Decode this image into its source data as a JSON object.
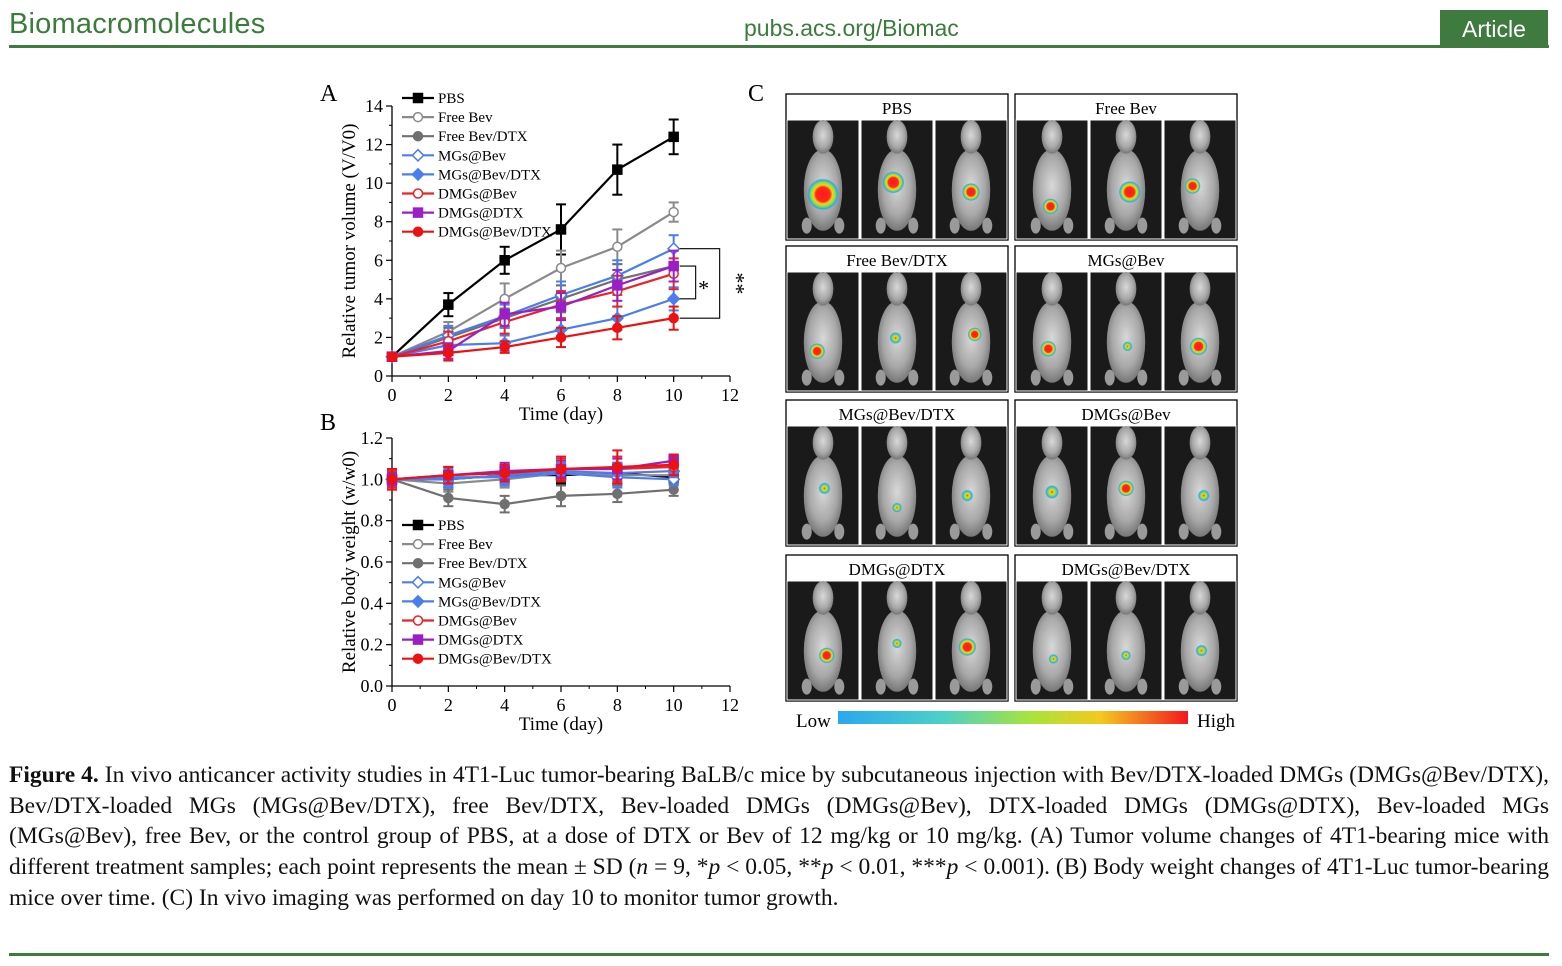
{
  "header": {
    "journal": "Biomacromolecules",
    "url": "pubs.acs.org/Biomac",
    "badge": "Article"
  },
  "figure": {
    "panel_a_label": "A",
    "panel_b_label": "B",
    "panel_c_label": "C"
  },
  "chart_data": [
    {
      "type": "line",
      "panel": "A",
      "xlabel": "Time (day)",
      "ylabel": "Relative tumor volume (V/V0)",
      "xlim": [
        0,
        12
      ],
      "ylim": [
        0,
        14
      ],
      "xticks": [
        0,
        2,
        4,
        6,
        8,
        10,
        12
      ],
      "yticks": [
        0,
        2,
        4,
        6,
        8,
        10,
        12,
        14
      ],
      "x": [
        0,
        2,
        4,
        6,
        8,
        10
      ],
      "legend_position": "top-left",
      "significance": [
        "*",
        "**"
      ],
      "series": [
        {
          "name": "PBS",
          "color": "#000000",
          "marker": "square-filled",
          "values": [
            1.0,
            3.7,
            6.0,
            7.6,
            10.7,
            12.4
          ],
          "errors": [
            0.2,
            0.6,
            0.7,
            1.3,
            1.3,
            0.9
          ]
        },
        {
          "name": "Free Bev",
          "color": "#8a8a8a",
          "marker": "circle-open",
          "values": [
            1.0,
            2.3,
            4.0,
            5.6,
            6.7,
            8.5
          ],
          "errors": [
            0.2,
            0.5,
            0.8,
            0.9,
            0.9,
            0.5
          ]
        },
        {
          "name": "Free Bev/DTX",
          "color": "#707070",
          "marker": "circle-filled",
          "values": [
            1.0,
            2.0,
            3.0,
            4.0,
            5.0,
            5.7
          ],
          "errors": [
            0.2,
            0.5,
            0.5,
            0.7,
            0.8,
            0.8
          ]
        },
        {
          "name": "MGs@Bev",
          "color": "#4a7df0",
          "marker": "diamond-open",
          "values": [
            1.0,
            2.1,
            3.1,
            4.2,
            5.2,
            6.6
          ],
          "errors": [
            0.2,
            0.5,
            0.6,
            0.7,
            0.8,
            0.7
          ]
        },
        {
          "name": "MGs@Bev/DTX",
          "color": "#4a7df0",
          "marker": "diamond-filled",
          "values": [
            1.0,
            1.6,
            1.7,
            2.4,
            3.0,
            4.0
          ],
          "errors": [
            0.2,
            0.4,
            0.4,
            0.5,
            0.6,
            0.6
          ]
        },
        {
          "name": "DMGs@Bev",
          "color": "#e8232a",
          "marker": "circle-open",
          "values": [
            1.0,
            1.8,
            2.8,
            3.7,
            4.4,
            5.3
          ],
          "errors": [
            0.2,
            0.5,
            0.6,
            0.7,
            0.8,
            0.8
          ]
        },
        {
          "name": "DMGs@DTX",
          "color": "#9a1fc4",
          "marker": "square-filled",
          "values": [
            1.0,
            1.3,
            3.2,
            3.6,
            4.7,
            5.7
          ],
          "errors": [
            0.2,
            0.4,
            0.6,
            0.7,
            0.8,
            0.8
          ]
        },
        {
          "name": "DMGs@Bev/DTX",
          "color": "#ee1111",
          "marker": "circle-filled",
          "values": [
            1.0,
            1.2,
            1.5,
            2.0,
            2.5,
            3.0
          ],
          "errors": [
            0.2,
            0.4,
            0.3,
            0.5,
            0.6,
            0.6
          ]
        }
      ]
    },
    {
      "type": "line",
      "panel": "B",
      "xlabel": "Time (day)",
      "ylabel": "Relative body weight (w/w0)",
      "xlim": [
        0,
        12
      ],
      "ylim": [
        0,
        1.2
      ],
      "xticks": [
        0,
        2,
        4,
        6,
        8,
        10,
        12
      ],
      "yticks": [
        "0.0",
        "0.2",
        "0.4",
        "0.6",
        "0.8",
        "1.0",
        "1.2"
      ],
      "x": [
        0,
        2,
        4,
        6,
        8,
        10
      ],
      "legend_position": "bottom-left",
      "series": [
        {
          "name": "PBS",
          "color": "#000000",
          "marker": "square-filled",
          "values": [
            1.0,
            1.0,
            1.02,
            1.02,
            1.03,
            1.01
          ],
          "errors": [
            0.03,
            0.04,
            0.04,
            0.04,
            0.05,
            0.03
          ]
        },
        {
          "name": "Free Bev",
          "color": "#8a8a8a",
          "marker": "circle-open",
          "values": [
            1.0,
            0.98,
            1.0,
            1.03,
            1.02,
            1.02
          ],
          "errors": [
            0.03,
            0.04,
            0.04,
            0.04,
            0.05,
            0.03
          ]
        },
        {
          "name": "Free Bev/DTX",
          "color": "#707070",
          "marker": "circle-filled",
          "values": [
            1.0,
            0.91,
            0.88,
            0.92,
            0.93,
            0.95
          ],
          "errors": [
            0.03,
            0.04,
            0.04,
            0.05,
            0.04,
            0.03
          ]
        },
        {
          "name": "MGs@Bev",
          "color": "#4a7df0",
          "marker": "diamond-open",
          "values": [
            1.0,
            1.01,
            1.01,
            1.03,
            1.01,
            1.0
          ],
          "errors": [
            0.03,
            0.04,
            0.04,
            0.04,
            0.05,
            0.03
          ]
        },
        {
          "name": "MGs@Bev/DTX",
          "color": "#4a7df0",
          "marker": "diamond-filled",
          "values": [
            1.0,
            1.0,
            1.02,
            1.04,
            1.03,
            1.04
          ],
          "errors": [
            0.03,
            0.04,
            0.04,
            0.04,
            0.05,
            0.03
          ]
        },
        {
          "name": "DMGs@Bev",
          "color": "#e8232a",
          "marker": "circle-open",
          "values": [
            1.0,
            1.02,
            1.03,
            1.05,
            1.05,
            1.06
          ],
          "errors": [
            0.04,
            0.04,
            0.04,
            0.05,
            0.06,
            0.04
          ]
        },
        {
          "name": "DMGs@DTX",
          "color": "#9a1fc4",
          "marker": "square-filled",
          "values": [
            1.0,
            1.02,
            1.04,
            1.05,
            1.05,
            1.09
          ],
          "errors": [
            0.03,
            0.04,
            0.04,
            0.04,
            0.05,
            0.03
          ]
        },
        {
          "name": "DMGs@Bev/DTX",
          "color": "#ee1111",
          "marker": "circle-filled",
          "values": [
            1.0,
            1.02,
            1.03,
            1.05,
            1.06,
            1.07
          ],
          "errors": [
            0.05,
            0.04,
            0.04,
            0.06,
            0.08,
            0.05
          ]
        }
      ]
    }
  ],
  "imaging": {
    "groups": [
      "PBS",
      "Free Bev",
      "Free Bev/DTX",
      "MGs@Bev",
      "MGs@Bev/DTX",
      "DMGs@Bev",
      "DMGs@DTX",
      "DMGs@Bev/DTX"
    ],
    "scale_low": "Low",
    "scale_high": "High"
  },
  "caption": {
    "label": "Figure 4.",
    "text_1": " In vivo anticancer activity studies in 4T1-Luc tumor-bearing BaLB/c mice by subcutaneous injection with Bev/DTX-loaded DMGs (DMGs@Bev/DTX), Bev/DTX-loaded MGs (MGs@Bev/DTX), free Bev/DTX, Bev-loaded DMGs (DMGs@Bev), DTX-loaded DMGs (DMGs@DTX), Bev-loaded MGs (MGs@Bev), free Bev, or the control group of PBS, at a dose of DTX or Bev of 12 mg/kg or 10 mg/kg. (A) Tumor volume changes of 4T1-bearing mice with different treatment samples; each point represents the mean ± SD (",
    "n_var": "n",
    "text_2": " = 9, *",
    "p1": "p",
    "text_3": " < 0.05, **",
    "p2": "p",
    "text_4": " < 0.01, ***",
    "p3": "p",
    "text_5": " < 0.001). (B) Body weight changes of 4T1-Luc tumor-bearing mice over time. (C) In vivo imaging was performed on day 10 to monitor tumor growth."
  }
}
